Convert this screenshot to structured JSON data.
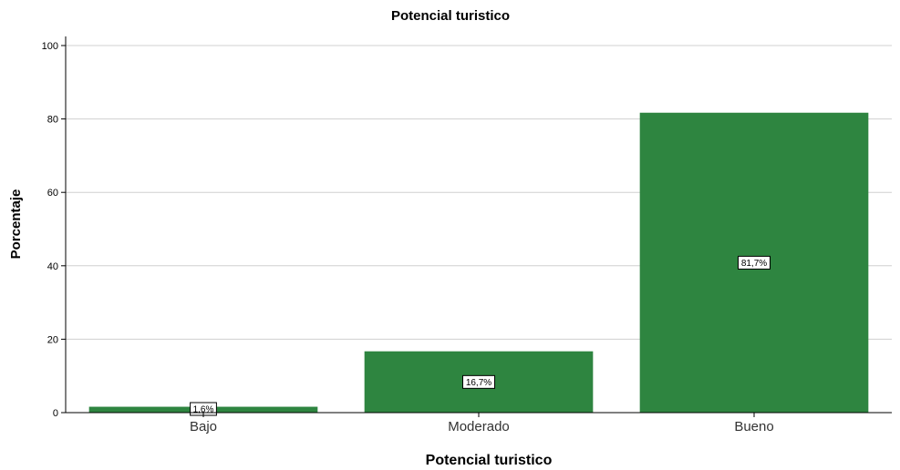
{
  "chart_data": {
    "type": "bar",
    "title": "Potencial turistico",
    "xlabel": "Potencial turistico",
    "ylabel": "Porcentaje",
    "categories": [
      "Bajo",
      "Moderado",
      "Bueno"
    ],
    "values": [
      1.6,
      16.7,
      81.7
    ],
    "data_labels": [
      "1,6%",
      "16,7%",
      "81,7%"
    ],
    "ylim": [
      0,
      100
    ],
    "yticks": [
      0,
      20,
      40,
      60,
      80,
      100
    ],
    "grid": true,
    "legend": "none",
    "bar_color": "#2e8540"
  }
}
